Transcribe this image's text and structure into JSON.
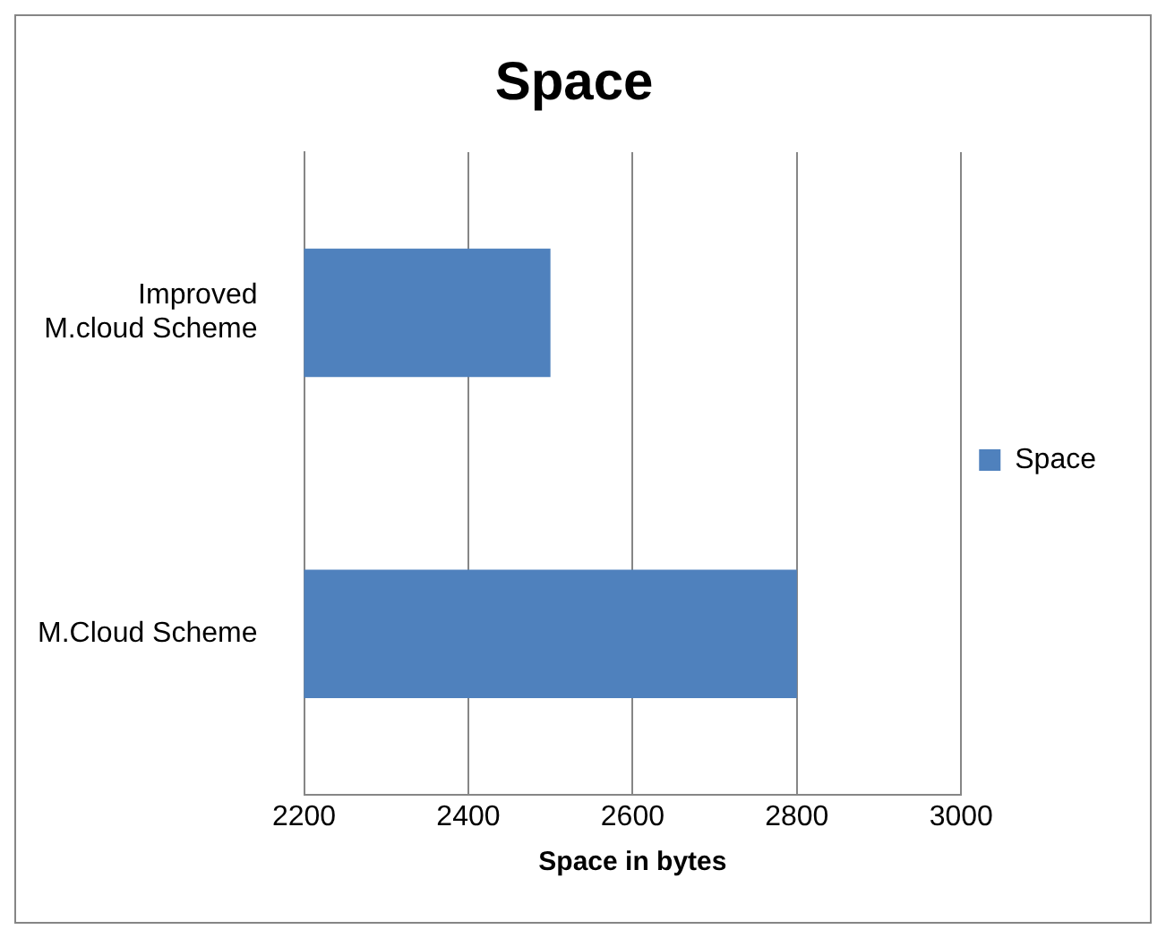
{
  "chart_data": {
    "type": "bar",
    "orientation": "horizontal",
    "title": "Space",
    "xlabel": "Space in bytes",
    "categories": [
      "Improved M.cloud Scheme",
      "M.Cloud Scheme"
    ],
    "series": [
      {
        "name": "Space",
        "color": "#4f81bd",
        "values": [
          2500,
          2800
        ]
      }
    ],
    "xlim": [
      2200,
      3000
    ],
    "xticks": [
      2200,
      2400,
      2600,
      2800,
      3000
    ],
    "grid": "x",
    "legend": "right"
  }
}
